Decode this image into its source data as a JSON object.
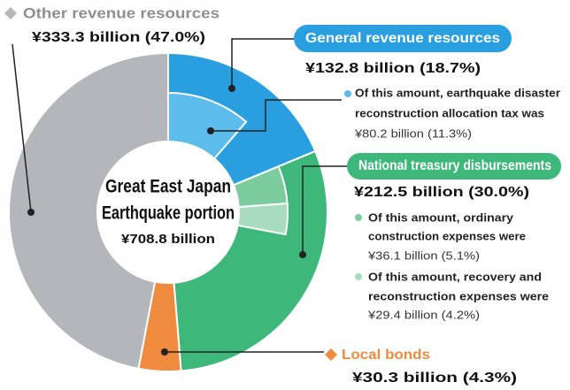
{
  "chart_data": {
    "type": "donut",
    "center_label": [
      "Great East Japan",
      "Earthquake portion"
    ],
    "total_label": "¥708.8 billion",
    "series": [
      {
        "name": "General revenue resources",
        "color": "#2a9fdf",
        "value": 132.8,
        "value_label": "¥132.8 billion (18.7%)",
        "parts": [
          {
            "name": [
              "Of this amount, earthquake disaster",
              "reconstruction allocation tax was"
            ],
            "color": "#5cbceb",
            "value": 80.2,
            "value_label": "¥80.2 billion (11.3%)"
          }
        ]
      },
      {
        "name": "National treasury disbursements",
        "color": "#3db87a",
        "value": 212.5,
        "value_label": "¥212.5 billion (30.0%)",
        "parts": [
          {
            "name": [
              "Of this amount, ordinary",
              "construction expenses were"
            ],
            "color": "#7ccb9f",
            "value": 36.1,
            "value_label": "¥36.1 billion (5.1%)"
          },
          {
            "name": [
              "Of this amount, recovery and",
              "reconstruction expenses were"
            ],
            "color": "#a8dcbf",
            "value": 29.4,
            "value_label": "¥29.4 billion (4.2%)"
          }
        ]
      },
      {
        "name": "Local bonds",
        "color": "#f08a3e",
        "value": 30.3,
        "value_label": "¥30.3 billion (4.3%)",
        "parts": []
      },
      {
        "name": "Other revenue resources",
        "color": "#b3b7bb",
        "value": 333.3,
        "value_label": "¥333.3 billion (47.0%)",
        "parts": []
      }
    ]
  }
}
